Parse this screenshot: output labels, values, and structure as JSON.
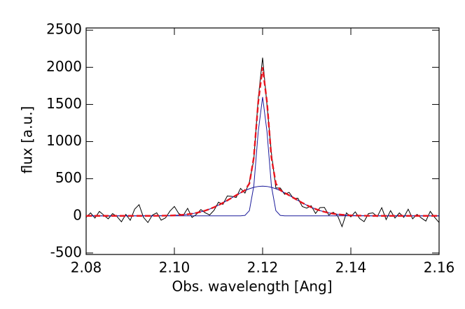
{
  "chart_data": {
    "type": "line",
    "xlabel": "Obs. wavelength [Ang]",
    "ylabel": "flux [a.u.]",
    "x": [
      2.08,
      2.081,
      2.082,
      2.083,
      2.084,
      2.085,
      2.086,
      2.087,
      2.088,
      2.089,
      2.09,
      2.091,
      2.092,
      2.093,
      2.094,
      2.095,
      2.096,
      2.097,
      2.098,
      2.099,
      2.1,
      2.101,
      2.102,
      2.103,
      2.104,
      2.105,
      2.106,
      2.107,
      2.108,
      2.109,
      2.11,
      2.111,
      2.112,
      2.113,
      2.114,
      2.115,
      2.116,
      2.117,
      2.118,
      2.119,
      2.12,
      2.121,
      2.122,
      2.123,
      2.124,
      2.125,
      2.126,
      2.127,
      2.128,
      2.129,
      2.13,
      2.131,
      2.132,
      2.133,
      2.134,
      2.135,
      2.136,
      2.137,
      2.138,
      2.139,
      2.14,
      2.141,
      2.142,
      2.143,
      2.144,
      2.145,
      2.146,
      2.147,
      2.148,
      2.149,
      2.15,
      2.151,
      2.152,
      2.153,
      2.154,
      2.155,
      2.156,
      2.157,
      2.158,
      2.159,
      2.16
    ],
    "series": [
      {
        "color": "#000000",
        "dash": false,
        "values": [
          -20,
          40,
          -30,
          60,
          10,
          -40,
          30,
          -10,
          -80,
          20,
          -60,
          90,
          150,
          -20,
          -90,
          10,
          41,
          -58,
          -27,
          64,
          127,
          30,
          5,
          101,
          -21,
          20,
          84,
          41,
          12,
          76,
          184,
          155,
          268,
          263,
          247,
          370,
          306,
          455,
          753,
          1577,
          2130,
          1487,
          843,
          375,
          376,
          290,
          317,
          233,
          238,
          125,
          104,
          136,
          32,
          111,
          114,
          10,
          49,
          1,
          -145,
          40,
          -13,
          54,
          -37,
          -78,
          31,
          40,
          -10,
          110,
          -50,
          70,
          -30,
          40,
          -20,
          90,
          -40,
          20,
          -30,
          -70,
          60,
          -20,
          -90
        ]
      },
      {
        "color": "#1a1a9a",
        "dash": false,
        "values": [
          0,
          0,
          0,
          0,
          0,
          0,
          0,
          0,
          0,
          0,
          0,
          0,
          0,
          0,
          0,
          0,
          0,
          0,
          0,
          0,
          0,
          0,
          0,
          0,
          0,
          0,
          0,
          0,
          0,
          0,
          0,
          0,
          0,
          0,
          0,
          0,
          6,
          70,
          399,
          1131,
          1600,
          1131,
          399,
          70,
          6,
          0,
          0,
          0,
          0,
          0,
          0,
          0,
          0,
          0,
          0,
          0,
          0,
          0,
          0,
          0,
          0,
          0,
          0,
          0,
          0,
          0,
          0,
          0,
          0,
          0,
          0,
          0,
          0,
          0,
          0,
          0,
          0,
          0,
          0,
          0,
          0
        ]
      },
      {
        "color": "#1a1a9a",
        "dash": false,
        "values": [
          0,
          0,
          0,
          0,
          0,
          0,
          0,
          0,
          0,
          0,
          0,
          0,
          0,
          0,
          0,
          0,
          1,
          2,
          3,
          4,
          7,
          10,
          15,
          21,
          29,
          40,
          54,
          71,
          92,
          116,
          144,
          175,
          208,
          243,
          277,
          310,
          340,
          365,
          384,
          396,
          400,
          396,
          384,
          365,
          340,
          310,
          277,
          243,
          208,
          175,
          144,
          116,
          92,
          71,
          54,
          40,
          29,
          21,
          15,
          10,
          7,
          4,
          3,
          2,
          1,
          0,
          0,
          0,
          0,
          0,
          0,
          0,
          0,
          0,
          0,
          0,
          0,
          0,
          0,
          0,
          0
        ]
      },
      {
        "color": "#e8141e",
        "dash": true,
        "values": [
          0,
          0,
          0,
          0,
          0,
          0,
          0,
          0,
          0,
          0,
          0,
          0,
          0,
          0,
          0,
          0,
          1,
          2,
          3,
          4,
          7,
          10,
          15,
          21,
          29,
          40,
          54,
          71,
          92,
          116,
          144,
          175,
          208,
          243,
          277,
          310,
          346,
          435,
          783,
          1527,
          2000,
          1527,
          783,
          435,
          346,
          310,
          277,
          243,
          208,
          175,
          144,
          116,
          92,
          71,
          54,
          40,
          29,
          21,
          15,
          10,
          7,
          4,
          3,
          2,
          1,
          0,
          0,
          0,
          0,
          0,
          0,
          0,
          0,
          0,
          0,
          0,
          0,
          0,
          0,
          0,
          0
        ]
      }
    ],
    "xlim": [
      2.08,
      2.16
    ],
    "xticks": [
      2.08,
      {
        "value": 2.1,
        "label": "2.10"
      },
      2.12,
      2.14,
      2.16
    ],
    "ylim": [
      -520,
      2530
    ],
    "yticks": [
      -500,
      0,
      500,
      1000,
      1500,
      2000,
      2500
    ]
  }
}
